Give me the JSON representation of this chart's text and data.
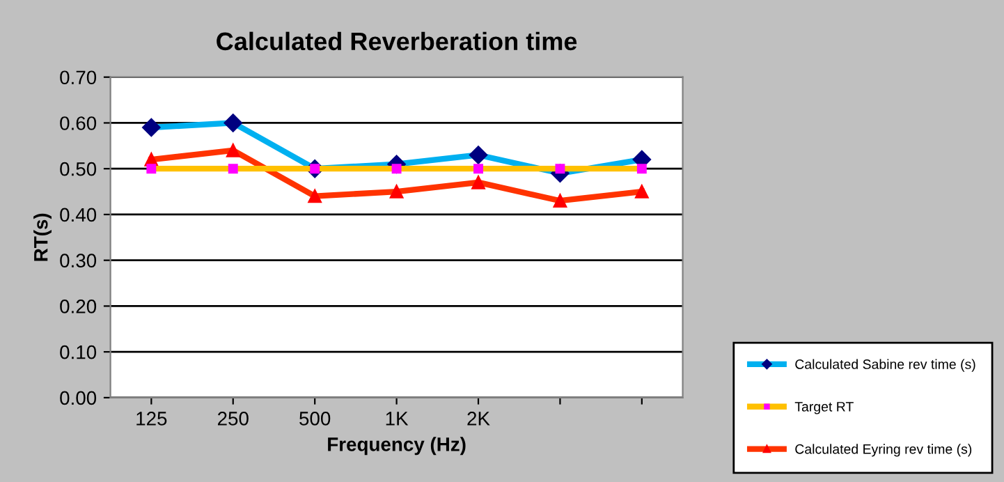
{
  "chart_data": {
    "type": "line",
    "title": "Calculated Reverberation time",
    "xlabel": "Frequency (Hz)",
    "ylabel": "RT(s)",
    "categories": [
      "125",
      "250",
      "500",
      "1K",
      "2K",
      null,
      null
    ],
    "series": [
      {
        "name": "Calculated Sabine rev time (s)",
        "color": "#00b0f0",
        "marker": "diamond",
        "values": [
          0.59,
          0.6,
          0.5,
          0.51,
          0.53,
          0.49,
          0.52
        ]
      },
      {
        "name": "Target RT",
        "color": "#ffc000",
        "marker": "square",
        "values": [
          0.5,
          0.5,
          0.5,
          0.5,
          0.5,
          0.5,
          0.5
        ]
      },
      {
        "name": "Calculated Eyring rev time (s)",
        "color": "#ff3300",
        "marker": "triangle",
        "values": [
          0.52,
          0.54,
          0.44,
          0.45,
          0.47,
          0.43,
          0.45
        ]
      }
    ],
    "ylim": [
      0,
      0.7
    ],
    "yticks": [
      {
        "value": 0,
        "label": "0.00"
      },
      {
        "value": 0.1,
        "label": "0.10"
      },
      {
        "value": 0.2,
        "label": "0.20"
      },
      {
        "value": 0.3,
        "label": "0.30"
      },
      {
        "value": 0.4,
        "label": "0.40"
      },
      {
        "value": 0.5,
        "label": "0.50"
      },
      {
        "value": 0.6,
        "label": "0.60"
      },
      {
        "value": 0.7,
        "label": "0.70"
      }
    ],
    "grid": "y",
    "legend": "bottom right"
  }
}
